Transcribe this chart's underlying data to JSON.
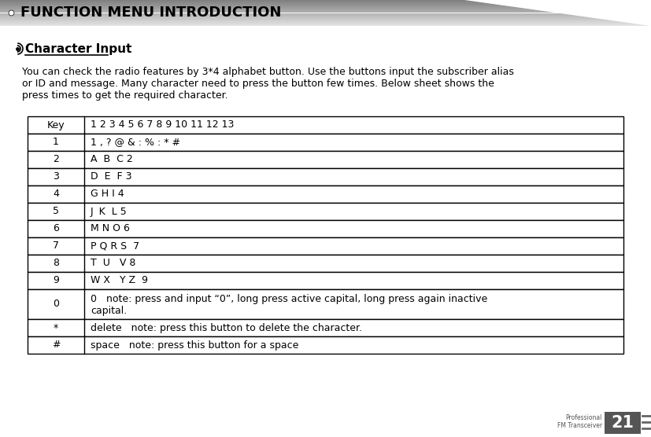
{
  "page_title": "FUNCTION MENU INTRODUCTION",
  "section_title": "Character Input",
  "intro_lines": [
    "You can check the radio features by 3*4 alphabet button. Use the buttons input the subscriber alias",
    "or ID and message. Many character need to press the button few times. Below sheet shows the",
    "press times to get the required character."
  ],
  "table_header_key": "Key",
  "table_header_val": "1 2 3 4 5 6 7 8 9 10 11 12 13",
  "table_rows": [
    {
      "key": "1",
      "val": "1 , ? @ & : % : * #",
      "multiline": false
    },
    {
      "key": "2",
      "val": "A  B  C 2",
      "multiline": false
    },
    {
      "key": "3",
      "val": "D  E  F 3",
      "multiline": false
    },
    {
      "key": "4",
      "val": "G H I 4",
      "multiline": false
    },
    {
      "key": "5",
      "val": "J  K  L 5",
      "multiline": false
    },
    {
      "key": "6",
      "val": "M N O 6",
      "multiline": false
    },
    {
      "key": "7",
      "val": "P Q R S  7",
      "multiline": false
    },
    {
      "key": "8",
      "val": "T  U   V 8",
      "multiline": false
    },
    {
      "key": "9",
      "val": "W X   Y Z  9",
      "multiline": false
    },
    {
      "key": "0",
      "val": "0   note: press and input “0”, long press active capital, long press again inactive",
      "val2": "capital.",
      "multiline": true
    },
    {
      "key": "*",
      "val": "delete   note: press this button to delete the character.",
      "multiline": false
    },
    {
      "key": "#",
      "val": "space   note: press this button for a space",
      "multiline": false
    }
  ],
  "footer_text1": "Professional",
  "footer_text2": "FM Transceiver",
  "footer_number": "21",
  "bg_color": "#ffffff",
  "header_dark": "#888888",
  "header_light": "#d8d8d8",
  "table_border": "#000000"
}
